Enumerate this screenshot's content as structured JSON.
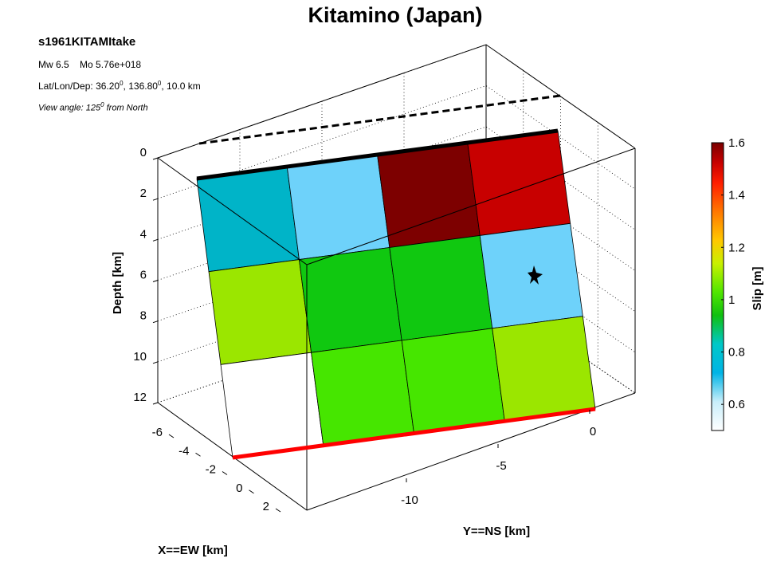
{
  "chart_data": {
    "type": "heatmap",
    "title": "Kitamino (Japan)",
    "event_name": "s1961KITAMItake",
    "mw_label": "Mw 6.5",
    "mo_label": "Mo 5.76e+018",
    "location_prefix": "Lat/Lon/Dep: ",
    "lat": "36.20",
    "lon": "136.80",
    "depth_suffix": ", 10.0 km",
    "degree_mark": "0",
    "view_prefix": "View angle: 125",
    "view_suffix": " from North",
    "xlabel": "X==EW [km]",
    "ylabel": "Y==NS [km]",
    "zlabel": "Depth [km]",
    "z_ticks": [
      "0",
      "2",
      "4",
      "6",
      "8",
      "10",
      "12"
    ],
    "y_ticks": [
      "0",
      "-5",
      "-10"
    ],
    "x_ticks": [
      "-6",
      "-4",
      "-2",
      "0",
      "2"
    ],
    "slip_grid_rows_top_to_bottom": [
      [
        0.75,
        0.6,
        1.6,
        1.5
      ],
      [
        1.05,
        0.9,
        0.9,
        0.6
      ],
      [
        null,
        0.95,
        0.95,
        1.05
      ]
    ],
    "slip_colors": {
      "teal": "#00b4c8",
      "light_blue": "#6ed2fa",
      "dark_red": "#7d0000",
      "red": "#c80000",
      "lime": "#9be600",
      "green": "#10c810",
      "bright_green": "#46e600",
      "white": "#ffffff"
    },
    "colorbar": {
      "label": "Slip [m]",
      "min": 0.5,
      "max": 1.6,
      "ticks": [
        "1.6",
        "1.4",
        "1.2",
        "1",
        "0.8",
        "0.6"
      ]
    },
    "fault_top_color": "#000000",
    "fault_bottom_color": "#ff0000"
  }
}
